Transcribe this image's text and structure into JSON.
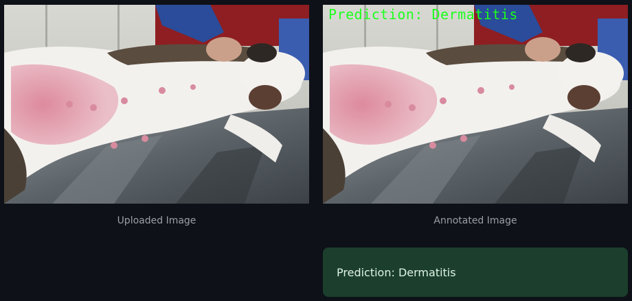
{
  "panels": [
    {
      "caption": "Uploaded Image",
      "image_alt": "dog lying on exam table with skin condition",
      "overlay_text": ""
    },
    {
      "caption": "Annotated Image",
      "image_alt": "dog lying on exam table with prediction overlay",
      "overlay_text": "Prediction: Dermatitis"
    }
  ],
  "result": {
    "message": "Prediction: Dermatitis",
    "bg_color": "#1b3f2c",
    "text_color": "#dff3e4"
  },
  "overlay_color": "#1cff1c",
  "page_bg": "#0e1117"
}
